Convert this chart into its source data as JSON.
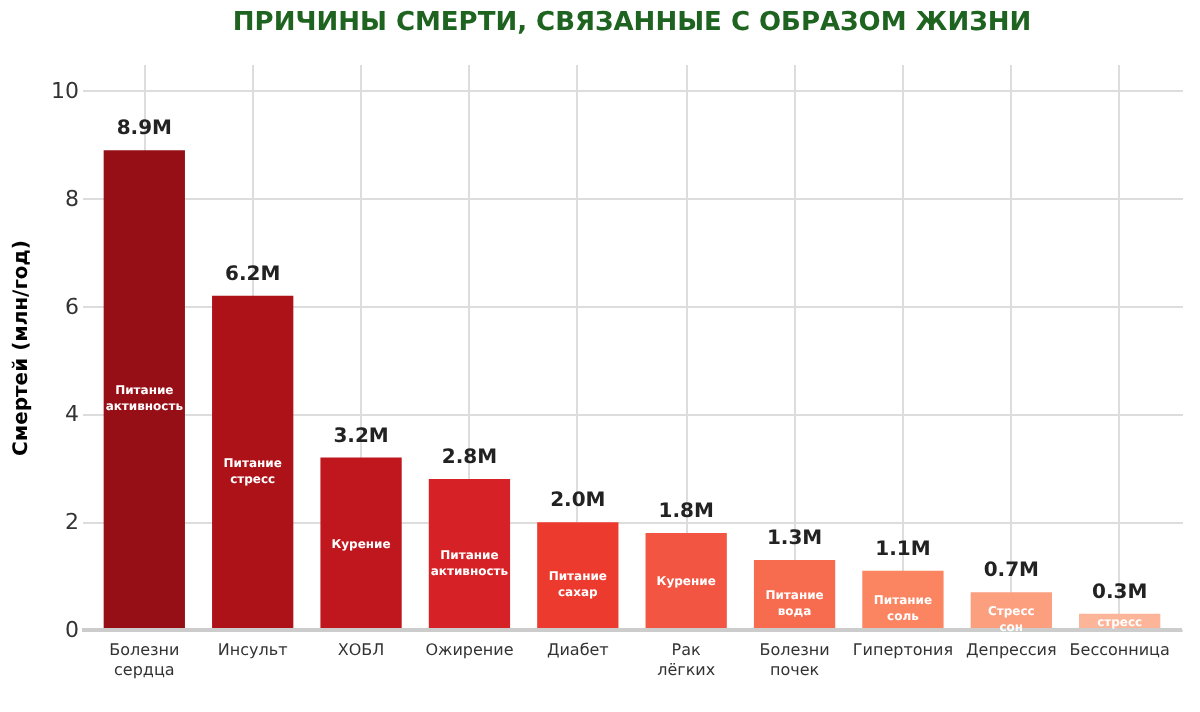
{
  "chart_data": {
    "type": "bar",
    "title": "ПРИЧИНЫ СМЕРТИ, СВЯЗАННЫЕ С ОБРАЗОМ ЖИЗНИ",
    "ylabel": "Смертей (млн/год)",
    "categories": [
      "Болезни\nсердца",
      "Инсульт",
      "ХОБЛ",
      "Ожирение",
      "Диабет",
      "Рак\nлёгких",
      "Болезни\nпочек",
      "Гипертония",
      "Депрессия",
      "Бессонница"
    ],
    "values": [
      8.9,
      6.2,
      3.2,
      2.8,
      2.0,
      1.8,
      1.3,
      1.1,
      0.7,
      0.3
    ],
    "value_labels": [
      "8.9M",
      "6.2M",
      "3.2M",
      "2.8M",
      "2.0M",
      "1.8M",
      "1.3M",
      "1.1M",
      "0.7M",
      "0.3M"
    ],
    "colors": [
      "#960f17",
      "#ad1219",
      "#c0161d",
      "#d62226",
      "#ec3b2e",
      "#f25541",
      "#f76b4e",
      "#fb8461",
      "#fc9f7e",
      "#fcb598"
    ],
    "annotations": [
      "Питание\nактивность",
      "Питание\nстресс",
      "Курение",
      "Питание\nактивность",
      "Питание\nсахар",
      "Курение",
      "Питание\nвода",
      "Питание\nсоль",
      "Стресс\nсон",
      "стресс"
    ],
    "ylim": [
      0,
      10.5
    ],
    "yticks": [
      0,
      2,
      4,
      6,
      8,
      10
    ],
    "grid": true
  }
}
